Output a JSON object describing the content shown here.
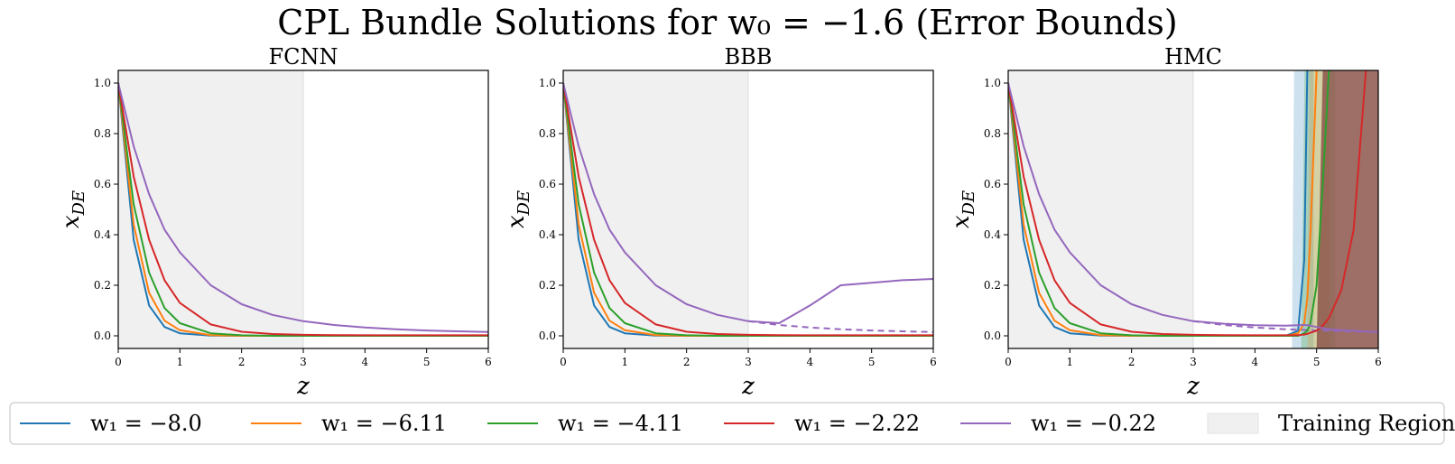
{
  "figure": {
    "title": "CPL Bundle Solutions for w₀ = −1.6 (Error Bounds)"
  },
  "legend": {
    "items": [
      {
        "label": "w₁ = −8.0",
        "color": "#1f77b4",
        "kind": "line"
      },
      {
        "label": "w₁ = −6.11",
        "color": "#ff7f0e",
        "kind": "line"
      },
      {
        "label": "w₁ = −4.11",
        "color": "#2ca02c",
        "kind": "line"
      },
      {
        "label": "w₁ = −2.22",
        "color": "#d62728",
        "kind": "line"
      },
      {
        "label": "w₁ = −0.22",
        "color": "#9467bd",
        "kind": "line"
      },
      {
        "label": "Training Region",
        "color": "#f0f0f0",
        "kind": "patch"
      }
    ]
  },
  "chart_data": [
    {
      "type": "line",
      "title": "FCNN",
      "xlabel": "z",
      "ylabel": "x_DE",
      "xlim": [
        0,
        6
      ],
      "ylim": [
        -0.05,
        1.05
      ],
      "xticks": [
        "0",
        "1",
        "2",
        "3",
        "4",
        "5",
        "6"
      ],
      "yticks": [
        "0.0",
        "0.2",
        "0.4",
        "0.6",
        "0.8",
        "1.0"
      ],
      "training_region": [
        0,
        3
      ],
      "x": [
        0,
        0.25,
        0.5,
        0.75,
        1,
        1.5,
        2,
        2.5,
        3,
        3.5,
        4,
        4.5,
        5,
        5.5,
        6
      ],
      "series": [
        {
          "name": "w₁ = −8.0",
          "color": "#1f77b4",
          "values": [
            1.0,
            0.38,
            0.12,
            0.035,
            0.01,
            0.001,
            0,
            0,
            0,
            0,
            0,
            0,
            0,
            0,
            0
          ]
        },
        {
          "name": "w₁ = −6.11",
          "color": "#ff7f0e",
          "values": [
            1.0,
            0.44,
            0.17,
            0.06,
            0.022,
            0.003,
            0,
            0,
            0,
            0,
            0,
            0,
            0,
            0,
            0
          ]
        },
        {
          "name": "w₁ = −4.11",
          "color": "#2ca02c",
          "values": [
            1.0,
            0.52,
            0.25,
            0.11,
            0.05,
            0.01,
            0.002,
            0,
            0,
            0,
            0,
            0,
            0,
            0,
            0
          ]
        },
        {
          "name": "w₁ = −2.22",
          "color": "#d62728",
          "values": [
            1.0,
            0.63,
            0.38,
            0.22,
            0.13,
            0.045,
            0.016,
            0.007,
            0.004,
            0.003,
            0.002,
            0.002,
            0.002,
            0.002,
            0.002
          ]
        },
        {
          "name": "w₁ = −0.22",
          "color": "#9467bd",
          "values": [
            1.0,
            0.75,
            0.56,
            0.42,
            0.33,
            0.2,
            0.125,
            0.083,
            0.058,
            0.043,
            0.033,
            0.026,
            0.021,
            0.018,
            0.015
          ]
        }
      ]
    },
    {
      "type": "line",
      "title": "BBB",
      "xlabel": "z",
      "ylabel": "x_DE",
      "xlim": [
        0,
        6
      ],
      "ylim": [
        -0.05,
        1.05
      ],
      "xticks": [
        "0",
        "1",
        "2",
        "3",
        "4",
        "5",
        "6"
      ],
      "yticks": [
        "0.0",
        "0.2",
        "0.4",
        "0.6",
        "0.8",
        "1.0"
      ],
      "training_region": [
        0,
        3
      ],
      "x": [
        0,
        0.25,
        0.5,
        0.75,
        1,
        1.5,
        2,
        2.5,
        3,
        3.5,
        4,
        4.5,
        5,
        5.5,
        6
      ],
      "series": [
        {
          "name": "w₁ = −8.0",
          "color": "#1f77b4",
          "values": [
            1.0,
            0.38,
            0.12,
            0.035,
            0.01,
            0.001,
            0,
            0,
            0,
            0,
            0,
            0,
            0,
            0,
            0
          ]
        },
        {
          "name": "w₁ = −6.11",
          "color": "#ff7f0e",
          "values": [
            1.0,
            0.44,
            0.17,
            0.06,
            0.022,
            0.003,
            0,
            0,
            0,
            0,
            0,
            0,
            0,
            0,
            0
          ]
        },
        {
          "name": "w₁ = −4.11",
          "color": "#2ca02c",
          "values": [
            1.0,
            0.52,
            0.25,
            0.11,
            0.05,
            0.01,
            0.002,
            0,
            0,
            0,
            0,
            0,
            0,
            0,
            0
          ]
        },
        {
          "name": "w₁ = −2.22",
          "color": "#d62728",
          "values": [
            1.0,
            0.63,
            0.38,
            0.22,
            0.13,
            0.045,
            0.016,
            0.007,
            0.004,
            0.003,
            0.002,
            0.002,
            0.002,
            0.002,
            0.002
          ]
        },
        {
          "name": "w₁ = −0.22",
          "color": "#9467bd",
          "values": [
            1.0,
            0.75,
            0.56,
            0.42,
            0.33,
            0.2,
            0.125,
            0.083,
            0.058,
            0.05,
            0.12,
            0.2,
            0.21,
            0.22,
            0.225
          ]
        }
      ],
      "reference_line": {
        "color": "#9467bd",
        "dashed": true,
        "x": [
          3,
          3.5,
          4,
          4.5,
          5,
          5.5,
          6
        ],
        "values": [
          0.058,
          0.043,
          0.033,
          0.026,
          0.021,
          0.018,
          0.015
        ]
      }
    },
    {
      "type": "line",
      "title": "HMC",
      "xlabel": "z",
      "ylabel": "x_DE",
      "xlim": [
        0,
        6
      ],
      "ylim": [
        -0.05,
        1.05
      ],
      "xticks": [
        "0",
        "1",
        "2",
        "3",
        "4",
        "5",
        "6"
      ],
      "yticks": [
        "0.0",
        "0.2",
        "0.4",
        "0.6",
        "0.8",
        "1.0"
      ],
      "training_region": [
        0,
        3
      ],
      "x": [
        0,
        0.25,
        0.5,
        0.75,
        1,
        1.5,
        2,
        2.5,
        3,
        3.5,
        4,
        4.5,
        4.7,
        4.8,
        4.85,
        4.9,
        5.0,
        5.1,
        5.2,
        5.4,
        5.6,
        5.8,
        6
      ],
      "series": [
        {
          "name": "w₁ = −8.0",
          "color": "#1f77b4",
          "values": [
            1.0,
            0.38,
            0.12,
            0.035,
            0.01,
            0.001,
            0,
            0,
            0,
            0,
            0,
            0,
            0.02,
            0.3,
            1.05,
            null,
            null,
            null,
            null,
            null,
            null,
            null,
            null
          ]
        },
        {
          "name": "w₁ = −6.11",
          "color": "#ff7f0e",
          "values": [
            1.0,
            0.44,
            0.17,
            0.06,
            0.022,
            0.003,
            0,
            0,
            0,
            0,
            0,
            0,
            0.01,
            0.05,
            0.15,
            0.4,
            1.05,
            null,
            null,
            null,
            null,
            null,
            null
          ]
        },
        {
          "name": "w₁ = −4.11",
          "color": "#2ca02c",
          "values": [
            1.0,
            0.52,
            0.25,
            0.11,
            0.05,
            0.01,
            0.002,
            0,
            0,
            0,
            0,
            0,
            0,
            0.01,
            0.02,
            0.05,
            0.2,
            0.6,
            1.05,
            null,
            null,
            null,
            null
          ]
        },
        {
          "name": "w₁ = −2.22",
          "color": "#d62728",
          "values": [
            1.0,
            0.63,
            0.38,
            0.22,
            0.13,
            0.045,
            0.016,
            0.007,
            0.004,
            0.003,
            0.002,
            0.002,
            0.003,
            0.005,
            0.008,
            0.012,
            0.02,
            0.04,
            0.07,
            0.18,
            0.42,
            1.05,
            null
          ]
        },
        {
          "name": "w₁ = −0.22",
          "color": "#9467bd",
          "values": [
            1.0,
            0.75,
            0.56,
            0.42,
            0.33,
            0.2,
            0.125,
            0.083,
            0.058,
            0.048,
            0.042,
            0.04,
            0.042,
            0.043,
            0.042,
            0.04,
            0.035,
            0.03,
            0.026,
            0.022,
            0.02,
            0.017,
            0.015
          ]
        }
      ],
      "reference_line": {
        "color": "#9467bd",
        "dashed": true,
        "x": [
          3,
          3.5,
          4,
          4.5,
          5,
          5.5,
          6
        ],
        "values": [
          0.058,
          0.043,
          0.033,
          0.026,
          0.021,
          0.018,
          0.015
        ]
      }
    }
  ]
}
